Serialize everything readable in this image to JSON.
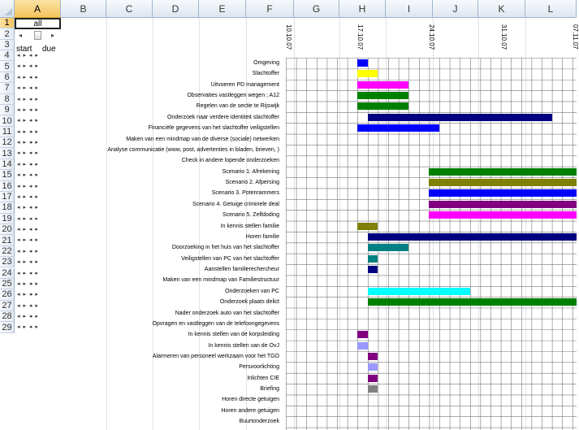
{
  "name_box_value": "all",
  "columns": [
    "A",
    "B",
    "C",
    "D",
    "E",
    "F",
    "G",
    "H",
    "I",
    "J",
    "K",
    "L"
  ],
  "selected_column": "A",
  "rows": [
    "1",
    "2",
    "3",
    "4",
    "5",
    "6",
    "7",
    "8",
    "9",
    "10",
    "11",
    "12",
    "13",
    "14",
    "15",
    "16",
    "17",
    "18",
    "19",
    "20",
    "21",
    "22",
    "23",
    "24",
    "25",
    "26",
    "27",
    "28",
    "29"
  ],
  "selected_row": "1",
  "start_label": "start",
  "due_label": "due",
  "spinner_glyphs": "◂ ▸ ◂ ▸",
  "dates": [
    "10.10.07",
    "17.10.07",
    "24.10.07",
    "31.10.07",
    "07.11.07"
  ],
  "tasks": [
    {
      "label": "Omgeving",
      "start": "2007-10-17",
      "end": "2007-10-18",
      "color": "#0000ff"
    },
    {
      "label": "Slachtoffer",
      "start": "2007-10-17",
      "end": "2007-10-19",
      "color": "#ffff00"
    },
    {
      "label": "Uitvoeren PD management",
      "start": "2007-10-17",
      "end": "2007-10-22",
      "color": "#ff00ff"
    },
    {
      "label": "Observaties vastleggen wegen ; A12",
      "start": "2007-10-17",
      "end": "2007-10-22",
      "color": "#008000"
    },
    {
      "label": "Regelen van de sectie te Rijswijk",
      "start": "2007-10-17",
      "end": "2007-10-22",
      "color": "#008000"
    },
    {
      "label": "Onderzoek naar verdere identiteit slachtoffer",
      "start": "2007-10-18",
      "end": "2007-11-05",
      "color": "#000080"
    },
    {
      "label": "Financiële gegevens van het slachtoffer veiligstellen",
      "start": "2007-10-17",
      "end": "2007-10-25",
      "color": "#0000ff"
    },
    {
      "label": "Maken van een mindmap van de diverse (sociale) netwerken",
      "start": "",
      "end": "",
      "color": ""
    },
    {
      "label": "Analyse communicatie (www, post, advertenties in bladen, brieven, )",
      "start": "",
      "end": "",
      "color": ""
    },
    {
      "label": "Check in andere lopende onderzoeken",
      "start": "",
      "end": "",
      "color": ""
    },
    {
      "label": "Scenario 1: Afrekening",
      "start": "2007-10-24",
      "end": "2007-11-08",
      "color": "#008000"
    },
    {
      "label": "Scenario 2. Afpersing",
      "start": "2007-10-24",
      "end": "2007-11-08",
      "color": "#808000"
    },
    {
      "label": "Scenario 3. Potenrammers",
      "start": "2007-10-24",
      "end": "2007-11-08",
      "color": "#0000ff"
    },
    {
      "label": "Scenario 4. Getuige criminele deal",
      "start": "2007-10-24",
      "end": "2007-11-08",
      "color": "#800080"
    },
    {
      "label": "Scenario 5. Zelfdoding",
      "start": "2007-10-24",
      "end": "2007-11-08",
      "color": "#ff00ff"
    },
    {
      "label": "In kennis stellen familie",
      "start": "2007-10-17",
      "end": "2007-10-19",
      "color": "#808000"
    },
    {
      "label": "Horen familie",
      "start": "2007-10-18",
      "end": "2007-11-08",
      "color": "#000080"
    },
    {
      "label": "Doorzoeking in het huis van het slachtoffer",
      "start": "2007-10-18",
      "end": "2007-10-22",
      "color": "#008080"
    },
    {
      "label": "Veiligstellen van PC van het slachtoffer",
      "start": "2007-10-18",
      "end": "2007-10-19",
      "color": "#008080"
    },
    {
      "label": "Aanstellen familierechercheur",
      "start": "2007-10-18",
      "end": "2007-10-19",
      "color": "#000080"
    },
    {
      "label": "Maken van een mindmap van Familiestructuur",
      "start": "",
      "end": "",
      "color": ""
    },
    {
      "label": "Onderzoeken van PC",
      "start": "2007-10-18",
      "end": "2007-10-28",
      "color": "#00ffff"
    },
    {
      "label": "Onderzoek plaats delict",
      "start": "2007-10-18",
      "end": "2007-11-08",
      "color": "#008000"
    },
    {
      "label": "Nader onderzoek auto van het slachtoffer",
      "start": "",
      "end": "",
      "color": ""
    },
    {
      "label": "Opvragen en vastleggen van de telefoongegevens",
      "start": "",
      "end": "",
      "color": ""
    },
    {
      "label": "In kennis stellen van de korpsleiding",
      "start": "2007-10-17",
      "end": "2007-10-18",
      "color": "#800080"
    },
    {
      "label": "In kennis stellen van de OvJ",
      "start": "2007-10-17",
      "end": "2007-10-18",
      "color": "#9999ff"
    },
    {
      "label": "Alarmeren van personeel werkzaam voor het TGO",
      "start": "2007-10-18",
      "end": "2007-10-19",
      "color": "#800080"
    },
    {
      "label": "Persvoorlichting",
      "start": "2007-10-18",
      "end": "2007-10-19",
      "color": "#9999ff"
    },
    {
      "label": "Inlichten CIE",
      "start": "2007-10-18",
      "end": "2007-10-19",
      "color": "#800080"
    },
    {
      "label": "Briefing",
      "start": "2007-10-18",
      "end": "2007-10-19",
      "color": "#808080"
    },
    {
      "label": "Horen directe getuigen",
      "start": "",
      "end": "",
      "color": ""
    },
    {
      "label": "Horen andere getuigen",
      "start": "",
      "end": "",
      "color": ""
    },
    {
      "label": "Buurtonderzoek",
      "start": "",
      "end": "",
      "color": ""
    }
  ]
}
